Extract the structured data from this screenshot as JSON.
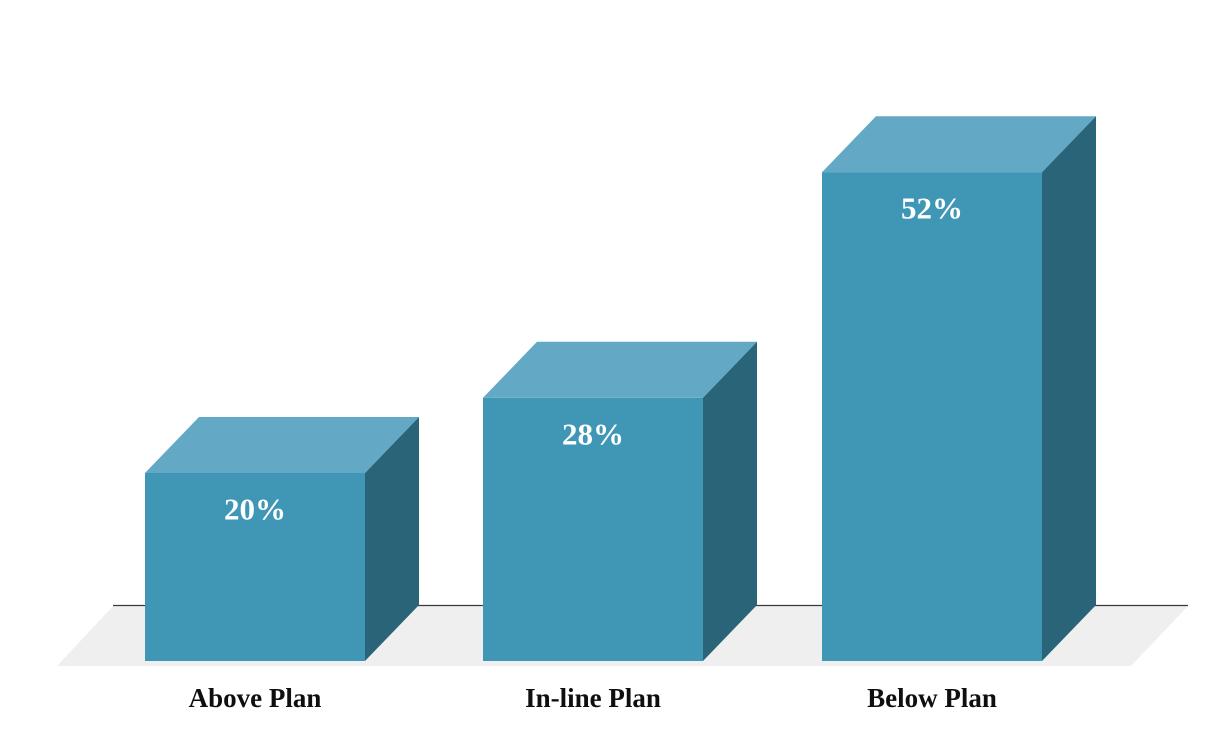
{
  "chart_data": {
    "type": "bar",
    "style": "3d-column",
    "title": "",
    "categories": [
      "Above Plan",
      "In-line Plan",
      "Below Plan"
    ],
    "values": [
      20,
      28,
      52
    ],
    "data_labels": [
      "20%",
      "28%",
      "52%"
    ],
    "unit": "percent",
    "xlabel": "",
    "ylabel": "",
    "ylim": [
      0,
      52
    ],
    "grid": false,
    "legend": false,
    "axis_ticks_visible": false,
    "colors": {
      "bar_front": "#3f96b5",
      "bar_top": "#63a9c5",
      "bar_side": "#2a6479",
      "floor": "#efefef",
      "axis_line": "#3a3a3a",
      "value_label": "#ffffff",
      "category_label": "#0f0f0f",
      "background": "#ffffff"
    }
  }
}
